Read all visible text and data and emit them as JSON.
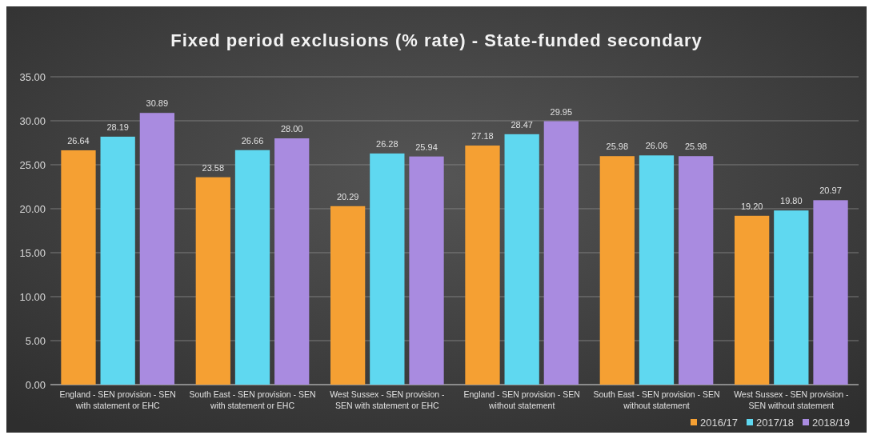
{
  "chart_data": {
    "type": "bar",
    "title": "Fixed period exclusions (% rate) - State-funded secondary",
    "categories": [
      "England - SEN provision - SEN with statement or EHC",
      "South East - SEN provision - SEN with statement or EHC",
      "West Sussex - SEN provision - SEN with statement or EHC",
      "England - SEN provision - SEN without statement",
      "South East - SEN provision - SEN without statement",
      "West Sussex - SEN provision - SEN without statement"
    ],
    "series": [
      {
        "name": "2016/17",
        "color": "#f5a033",
        "values": [
          26.64,
          23.58,
          20.29,
          27.18,
          25.98,
          19.2
        ],
        "value_labels": [
          "26.64",
          "23.58",
          "20.29",
          "27.18",
          "25.98",
          "19.20"
        ]
      },
      {
        "name": "2017/18",
        "color": "#5fd8f0",
        "values": [
          28.19,
          26.66,
          26.28,
          28.47,
          26.06,
          19.8
        ],
        "value_labels": [
          "28.19",
          "26.66",
          "26.28",
          "28.47",
          "26.06",
          "19.80"
        ]
      },
      {
        "name": "2018/19",
        "color": "#a98be0",
        "values": [
          30.89,
          28.0,
          25.94,
          29.95,
          25.98,
          20.97
        ],
        "value_labels": [
          "30.89",
          "28.00",
          "25.94",
          "29.95",
          "25.98",
          "20.97"
        ]
      }
    ],
    "ylim": [
      0,
      35
    ],
    "yticks": [
      {
        "value": 0,
        "label": "0.00"
      },
      {
        "value": 5,
        "label": "5.00"
      },
      {
        "value": 10,
        "label": "10.00"
      },
      {
        "value": 15,
        "label": "15.00"
      },
      {
        "value": 20,
        "label": "20.00"
      },
      {
        "value": 25,
        "label": "25.00"
      },
      {
        "value": 30,
        "label": "30.00"
      },
      {
        "value": 35,
        "label": "35.00"
      }
    ],
    "grid": "y",
    "legend": "bottom right"
  }
}
